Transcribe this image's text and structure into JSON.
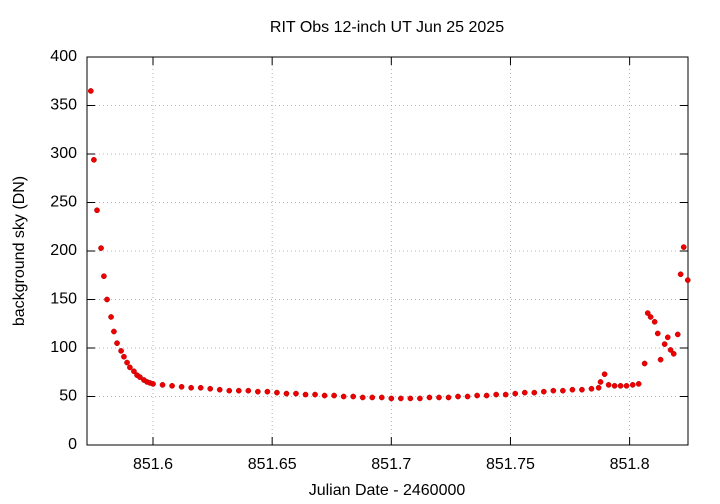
{
  "chart_data": {
    "type": "scatter",
    "title": "RIT Obs 12-inch UT Jun 25 2025",
    "x_label": "Julian Date - 2460000",
    "y_label": "background sky (DN)",
    "xlim": [
      851.5723,
      851.8245
    ],
    "ylim": [
      0,
      400
    ],
    "xticks": [
      851.6,
      851.65,
      851.7,
      851.75,
      851.8
    ],
    "yticks": [
      0,
      50,
      100,
      150,
      200,
      250,
      300,
      350,
      400
    ],
    "grid": true,
    "color": "#ee0000",
    "x": [
      851.5739,
      851.5752,
      851.5765,
      851.5782,
      851.5794,
      851.5807,
      851.5824,
      851.5836,
      851.5849,
      851.5866,
      851.5878,
      851.5891,
      851.5903,
      851.592,
      851.5933,
      851.5945,
      851.5962,
      851.5975,
      851.5987,
      851.6,
      851.604,
      851.608,
      851.612,
      851.616,
      851.62,
      851.624,
      851.628,
      851.632,
      851.636,
      851.64,
      851.644,
      851.648,
      851.652,
      851.656,
      851.66,
      851.664,
      851.668,
      851.672,
      851.676,
      851.68,
      851.684,
      851.688,
      851.692,
      851.696,
      851.7,
      851.704,
      851.708,
      851.712,
      851.716,
      851.72,
      851.724,
      851.728,
      851.732,
      851.736,
      851.74,
      851.744,
      851.748,
      851.752,
      851.756,
      851.76,
      851.764,
      851.768,
      851.772,
      851.776,
      851.78,
      851.784,
      851.787,
      851.7878,
      851.7895,
      851.7912,
      851.7937,
      851.7962,
      851.7987,
      851.8013,
      851.8038,
      851.8063,
      851.8076,
      851.8088,
      851.8105,
      851.8118,
      851.813,
      851.8147,
      851.816,
      851.8172,
      851.8185,
      851.8202,
      851.8214,
      851.8227,
      851.8244
    ],
    "values": [
      365,
      294,
      242,
      203,
      174,
      150,
      132,
      117,
      105,
      97,
      91,
      85,
      80,
      76,
      72,
      70,
      67,
      65,
      64,
      63,
      62,
      61,
      60,
      59,
      59,
      58,
      57,
      56,
      56,
      56,
      55,
      55,
      54,
      53,
      53,
      52,
      52,
      51,
      51,
      50,
      50,
      49,
      49,
      49,
      48,
      48,
      48,
      48,
      49,
      49,
      49,
      50,
      50,
      51,
      51,
      52,
      52,
      53,
      54,
      54,
      55,
      56,
      56,
      57,
      57,
      58,
      59,
      65,
      73,
      62,
      61,
      61,
      61,
      62,
      63,
      84,
      136,
      132,
      127,
      115,
      88,
      104,
      111,
      98,
      94,
      114,
      176,
      204,
      170
    ]
  }
}
